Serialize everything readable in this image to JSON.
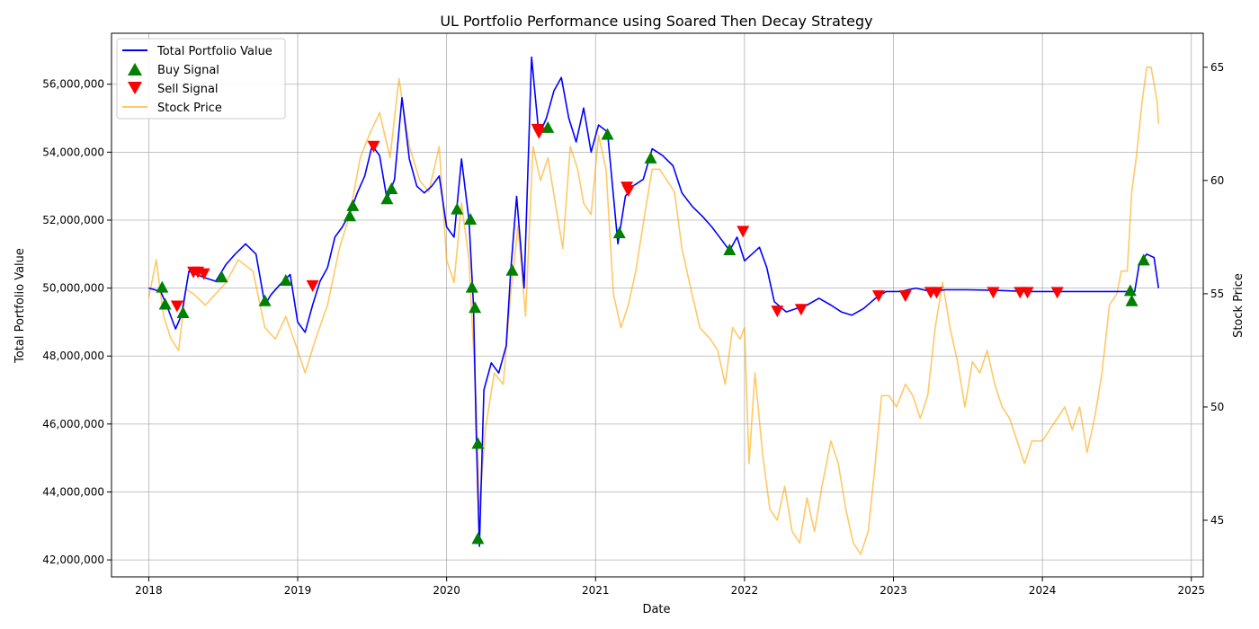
{
  "chart_data": {
    "type": "line",
    "title": "UL Portfolio Performance using Soared Then Decay Strategy",
    "xlabel": "Date",
    "ylabel": "Total Portfolio Value",
    "y2label": "Stock Price",
    "xlim": [
      2017.75,
      2025.08
    ],
    "ylim": [
      41500000,
      57500000
    ],
    "y2lim": [
      42.5,
      66.5
    ],
    "x_ticks": [
      "2018",
      "2019",
      "2020",
      "2021",
      "2022",
      "2023",
      "2024",
      "2025"
    ],
    "y_ticks": [
      42000000,
      44000000,
      46000000,
      48000000,
      50000000,
      52000000,
      54000000,
      56000000
    ],
    "y_tick_labels": [
      "42,000,000",
      "44,000,000",
      "46,000,000",
      "48,000,000",
      "50,000,000",
      "52,000,000",
      "54,000,000",
      "56,000,000"
    ],
    "y2_ticks": [
      "45",
      "50",
      "55",
      "60",
      "65"
    ],
    "grid": true,
    "legend_position": "upper-left",
    "legend": [
      "Total Portfolio Value",
      "Buy Signal",
      "Sell Signal",
      "Stock Price"
    ],
    "colors": {
      "portfolio": "#0000ff",
      "buy": "#008000",
      "sell": "#ff0000",
      "price": "#ffa500"
    },
    "portfolio_series": {
      "name": "Total Portfolio Value",
      "points": [
        [
          2018.0,
          50000000
        ],
        [
          2018.08,
          49900000
        ],
        [
          2018.12,
          49500000
        ],
        [
          2018.18,
          48800000
        ],
        [
          2018.22,
          49200000
        ],
        [
          2018.27,
          50500000
        ],
        [
          2018.32,
          50400000
        ],
        [
          2018.38,
          50300000
        ],
        [
          2018.45,
          50200000
        ],
        [
          2018.52,
          50700000
        ],
        [
          2018.58,
          51000000
        ],
        [
          2018.65,
          51300000
        ],
        [
          2018.72,
          51000000
        ],
        [
          2018.78,
          49500000
        ],
        [
          2018.82,
          49800000
        ],
        [
          2018.88,
          50100000
        ],
        [
          2018.95,
          50400000
        ],
        [
          2019.0,
          49000000
        ],
        [
          2019.05,
          48700000
        ],
        [
          2019.1,
          49500000
        ],
        [
          2019.15,
          50200000
        ],
        [
          2019.2,
          50600000
        ],
        [
          2019.25,
          51500000
        ],
        [
          2019.3,
          51800000
        ],
        [
          2019.35,
          52200000
        ],
        [
          2019.4,
          52800000
        ],
        [
          2019.45,
          53300000
        ],
        [
          2019.5,
          54200000
        ],
        [
          2019.55,
          53900000
        ],
        [
          2019.6,
          52600000
        ],
        [
          2019.65,
          53200000
        ],
        [
          2019.7,
          55600000
        ],
        [
          2019.75,
          53800000
        ],
        [
          2019.8,
          53000000
        ],
        [
          2019.85,
          52800000
        ],
        [
          2019.9,
          53000000
        ],
        [
          2019.95,
          53300000
        ],
        [
          2020.0,
          51800000
        ],
        [
          2020.05,
          51500000
        ],
        [
          2020.1,
          53800000
        ],
        [
          2020.15,
          52000000
        ],
        [
          2020.18,
          49500000
        ],
        [
          2020.2,
          45500000
        ],
        [
          2020.22,
          42400000
        ],
        [
          2020.25,
          47000000
        ],
        [
          2020.3,
          47800000
        ],
        [
          2020.35,
          47500000
        ],
        [
          2020.4,
          48300000
        ],
        [
          2020.43,
          50500000
        ],
        [
          2020.47,
          52700000
        ],
        [
          2020.52,
          50000000
        ],
        [
          2020.57,
          56800000
        ],
        [
          2020.62,
          54500000
        ],
        [
          2020.67,
          55000000
        ],
        [
          2020.72,
          55800000
        ],
        [
          2020.77,
          56200000
        ],
        [
          2020.82,
          55000000
        ],
        [
          2020.87,
          54300000
        ],
        [
          2020.92,
          55300000
        ],
        [
          2020.97,
          54000000
        ],
        [
          2021.02,
          54800000
        ],
        [
          2021.08,
          54600000
        ],
        [
          2021.15,
          51300000
        ],
        [
          2021.2,
          52700000
        ],
        [
          2021.25,
          53000000
        ],
        [
          2021.32,
          53200000
        ],
        [
          2021.38,
          54100000
        ],
        [
          2021.45,
          53900000
        ],
        [
          2021.52,
          53600000
        ],
        [
          2021.58,
          52800000
        ],
        [
          2021.65,
          52400000
        ],
        [
          2021.72,
          52100000
        ],
        [
          2021.78,
          51800000
        ],
        [
          2021.85,
          51400000
        ],
        [
          2021.9,
          51100000
        ],
        [
          2021.95,
          51500000
        ],
        [
          2022.0,
          50800000
        ],
        [
          2022.05,
          51000000
        ],
        [
          2022.1,
          51200000
        ],
        [
          2022.15,
          50600000
        ],
        [
          2022.2,
          49600000
        ],
        [
          2022.28,
          49300000
        ],
        [
          2022.35,
          49400000
        ],
        [
          2022.42,
          49500000
        ],
        [
          2022.5,
          49700000
        ],
        [
          2022.58,
          49500000
        ],
        [
          2022.65,
          49300000
        ],
        [
          2022.72,
          49200000
        ],
        [
          2022.8,
          49400000
        ],
        [
          2022.88,
          49700000
        ],
        [
          2022.95,
          49900000
        ],
        [
          2023.05,
          49900000
        ],
        [
          2023.15,
          50000000
        ],
        [
          2023.25,
          49900000
        ],
        [
          2023.35,
          49950000
        ],
        [
          2023.5,
          49950000
        ],
        [
          2023.7,
          49930000
        ],
        [
          2023.9,
          49900000
        ],
        [
          2024.1,
          49900000
        ],
        [
          2024.3,
          49900000
        ],
        [
          2024.5,
          49900000
        ],
        [
          2024.62,
          49900000
        ],
        [
          2024.65,
          50700000
        ],
        [
          2024.7,
          51000000
        ],
        [
          2024.75,
          50900000
        ],
        [
          2024.78,
          50000000
        ]
      ]
    },
    "price_series": {
      "name": "Stock Price",
      "points": [
        [
          2018.0,
          54.8
        ],
        [
          2018.05,
          56.5
        ],
        [
          2018.1,
          54.0
        ],
        [
          2018.15,
          53.0
        ],
        [
          2018.2,
          52.5
        ],
        [
          2018.25,
          55.2
        ],
        [
          2018.3,
          55.0
        ],
        [
          2018.38,
          54.5
        ],
        [
          2018.45,
          55.0
        ],
        [
          2018.52,
          55.5
        ],
        [
          2018.6,
          56.5
        ],
        [
          2018.7,
          56.0
        ],
        [
          2018.78,
          53.5
        ],
        [
          2018.85,
          53.0
        ],
        [
          2018.92,
          54.0
        ],
        [
          2019.0,
          52.5
        ],
        [
          2019.05,
          51.5
        ],
        [
          2019.12,
          53.0
        ],
        [
          2019.2,
          54.5
        ],
        [
          2019.28,
          57.0
        ],
        [
          2019.35,
          58.5
        ],
        [
          2019.42,
          61.0
        ],
        [
          2019.48,
          62.0
        ],
        [
          2019.55,
          63.0
        ],
        [
          2019.62,
          61.0
        ],
        [
          2019.68,
          64.5
        ],
        [
          2019.75,
          61.5
        ],
        [
          2019.82,
          60.0
        ],
        [
          2019.88,
          59.5
        ],
        [
          2019.95,
          61.5
        ],
        [
          2020.0,
          56.5
        ],
        [
          2020.05,
          55.5
        ],
        [
          2020.1,
          59.0
        ],
        [
          2020.15,
          56.5
        ],
        [
          2020.2,
          50.0
        ],
        [
          2020.22,
          45.5
        ],
        [
          2020.26,
          49.0
        ],
        [
          2020.32,
          51.5
        ],
        [
          2020.38,
          51.0
        ],
        [
          2020.43,
          55.0
        ],
        [
          2020.48,
          58.0
        ],
        [
          2020.53,
          54.0
        ],
        [
          2020.58,
          61.5
        ],
        [
          2020.63,
          60.0
        ],
        [
          2020.68,
          61.0
        ],
        [
          2020.73,
          59.0
        ],
        [
          2020.78,
          57.0
        ],
        [
          2020.83,
          61.5
        ],
        [
          2020.88,
          60.5
        ],
        [
          2020.92,
          59.0
        ],
        [
          2020.97,
          58.5
        ],
        [
          2021.02,
          62.0
        ],
        [
          2021.07,
          60.5
        ],
        [
          2021.12,
          55.0
        ],
        [
          2021.17,
          53.5
        ],
        [
          2021.22,
          54.5
        ],
        [
          2021.27,
          56.0
        ],
        [
          2021.33,
          58.5
        ],
        [
          2021.38,
          60.5
        ],
        [
          2021.43,
          60.5
        ],
        [
          2021.48,
          60.0
        ],
        [
          2021.53,
          59.5
        ],
        [
          2021.58,
          57.0
        ],
        [
          2021.63,
          55.5
        ],
        [
          2021.7,
          53.5
        ],
        [
          2021.77,
          53.0
        ],
        [
          2021.82,
          52.5
        ],
        [
          2021.87,
          51.0
        ],
        [
          2021.92,
          53.5
        ],
        [
          2021.97,
          53.0
        ],
        [
          2022.0,
          53.5
        ],
        [
          2022.03,
          47.5
        ],
        [
          2022.07,
          51.5
        ],
        [
          2022.12,
          48.0
        ],
        [
          2022.17,
          45.5
        ],
        [
          2022.22,
          45.0
        ],
        [
          2022.27,
          46.5
        ],
        [
          2022.32,
          44.5
        ],
        [
          2022.37,
          44.0
        ],
        [
          2022.42,
          46.0
        ],
        [
          2022.47,
          44.5
        ],
        [
          2022.52,
          46.5
        ],
        [
          2022.58,
          48.5
        ],
        [
          2022.63,
          47.5
        ],
        [
          2022.68,
          45.5
        ],
        [
          2022.73,
          44.0
        ],
        [
          2022.78,
          43.5
        ],
        [
          2022.83,
          44.5
        ],
        [
          2022.87,
          47.0
        ],
        [
          2022.92,
          50.5
        ],
        [
          2022.97,
          50.5
        ],
        [
          2023.02,
          50.0
        ],
        [
          2023.08,
          51.0
        ],
        [
          2023.13,
          50.5
        ],
        [
          2023.18,
          49.5
        ],
        [
          2023.23,
          50.5
        ],
        [
          2023.28,
          53.5
        ],
        [
          2023.33,
          55.5
        ],
        [
          2023.38,
          53.5
        ],
        [
          2023.43,
          52.0
        ],
        [
          2023.48,
          50.0
        ],
        [
          2023.53,
          52.0
        ],
        [
          2023.58,
          51.5
        ],
        [
          2023.63,
          52.5
        ],
        [
          2023.68,
          51.0
        ],
        [
          2023.73,
          50.0
        ],
        [
          2023.78,
          49.5
        ],
        [
          2023.83,
          48.5
        ],
        [
          2023.88,
          47.5
        ],
        [
          2023.93,
          48.5
        ],
        [
          2024.0,
          48.5
        ],
        [
          2024.05,
          49.0
        ],
        [
          2024.1,
          49.5
        ],
        [
          2024.15,
          50.0
        ],
        [
          2024.2,
          49.0
        ],
        [
          2024.25,
          50.0
        ],
        [
          2024.3,
          48.0
        ],
        [
          2024.35,
          49.5
        ],
        [
          2024.4,
          51.5
        ],
        [
          2024.45,
          54.5
        ],
        [
          2024.5,
          55.0
        ],
        [
          2024.53,
          56.0
        ],
        [
          2024.57,
          56.0
        ],
        [
          2024.6,
          59.5
        ],
        [
          2024.63,
          61.0
        ],
        [
          2024.67,
          63.5
        ],
        [
          2024.7,
          65.0
        ],
        [
          2024.73,
          65.0
        ],
        [
          2024.77,
          63.5
        ],
        [
          2024.78,
          62.5
        ]
      ]
    },
    "buy_signals": [
      [
        2018.09,
        50000000
      ],
      [
        2018.11,
        49500000
      ],
      [
        2018.23,
        49250000
      ],
      [
        2018.49,
        50300000
      ],
      [
        2018.78,
        49600000
      ],
      [
        2018.92,
        50200000
      ],
      [
        2019.35,
        52100000
      ],
      [
        2019.37,
        52400000
      ],
      [
        2019.6,
        52600000
      ],
      [
        2019.63,
        52900000
      ],
      [
        2020.07,
        52300000
      ],
      [
        2020.16,
        52000000
      ],
      [
        2020.17,
        50000000
      ],
      [
        2020.19,
        49400000
      ],
      [
        2020.21,
        45400000
      ],
      [
        2020.21,
        42600000
      ],
      [
        2020.44,
        50500000
      ],
      [
        2020.68,
        54700000
      ],
      [
        2021.08,
        54500000
      ],
      [
        2021.16,
        51600000
      ],
      [
        2021.37,
        53800000
      ],
      [
        2021.9,
        51100000
      ],
      [
        2024.59,
        49900000
      ],
      [
        2024.6,
        49600000
      ],
      [
        2024.68,
        50800000
      ]
    ],
    "sell_signals": [
      [
        2018.19,
        49500000
      ],
      [
        2018.3,
        50500000
      ],
      [
        2018.33,
        50500000
      ],
      [
        2018.37,
        50450000
      ],
      [
        2019.1,
        50100000
      ],
      [
        2019.51,
        54200000
      ],
      [
        2020.61,
        54700000
      ],
      [
        2020.62,
        54600000
      ],
      [
        2021.21,
        53000000
      ],
      [
        2021.22,
        52900000
      ],
      [
        2021.99,
        51700000
      ],
      [
        2022.22,
        49350000
      ],
      [
        2022.38,
        49400000
      ],
      [
        2022.9,
        49800000
      ],
      [
        2023.08,
        49800000
      ],
      [
        2023.25,
        49900000
      ],
      [
        2023.29,
        49900000
      ],
      [
        2023.67,
        49900000
      ],
      [
        2023.85,
        49900000
      ],
      [
        2023.9,
        49900000
      ],
      [
        2024.1,
        49900000
      ]
    ]
  }
}
